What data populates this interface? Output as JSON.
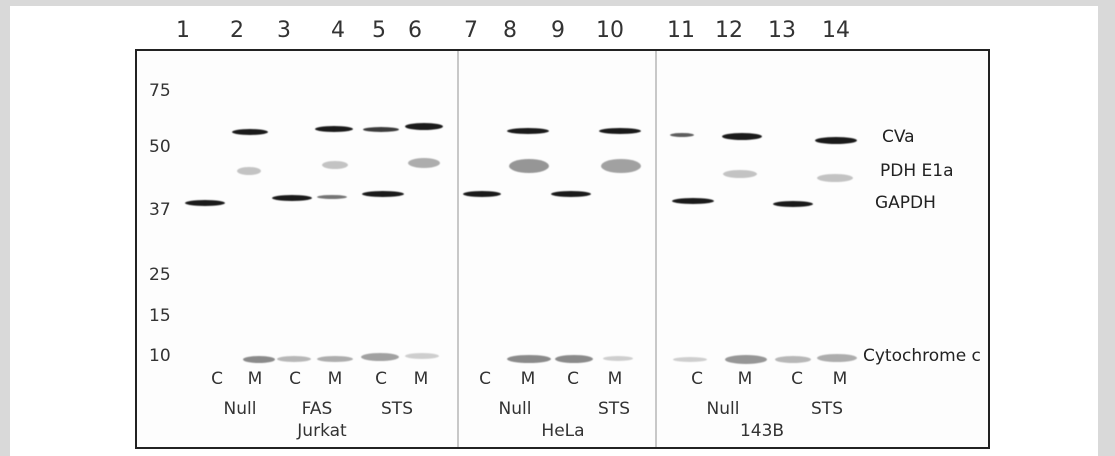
{
  "lanes": [
    "1",
    "2",
    "3",
    "4",
    "5",
    "6",
    "7",
    "8",
    "9",
    "10",
    "11",
    "12",
    "13",
    "14"
  ],
  "mw_markers": [
    "75",
    "50",
    "37",
    "25",
    "15",
    "10"
  ],
  "protein_labels": {
    "cva": "CVa",
    "pdh": "PDH E1a",
    "gapdh": "GAPDH",
    "cytc": "Cytochrome c"
  },
  "fractions": [
    "C",
    "M",
    "C",
    "M",
    "C",
    "M",
    "C",
    "M",
    "C",
    "M",
    "C",
    "M",
    "C",
    "M"
  ],
  "treatments": {
    "jurkat_null": "Null",
    "jurkat_fas": "FAS",
    "jurkat_sts": "STS",
    "hela_null": "Null",
    "hela_sts": "STS",
    "b143_null": "Null",
    "b143_sts": "STS"
  },
  "cell_lines": {
    "jurkat": "Jurkat",
    "hela": "HeLa",
    "b143": "143B"
  }
}
